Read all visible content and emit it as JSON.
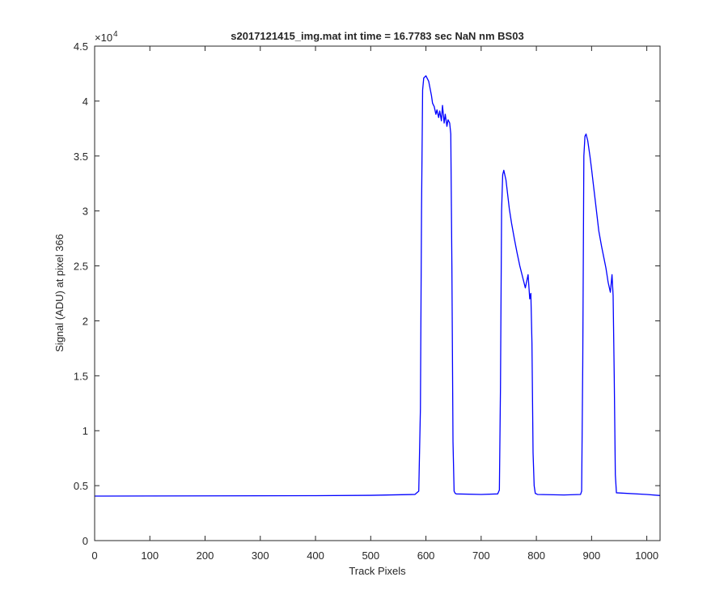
{
  "figure": {
    "background": "#ffffff"
  },
  "chart_data": {
    "type": "line",
    "title": "s2017121415_img.mat int time = 16.7783 sec  NaN nm BS03",
    "xlabel": "Track Pixels",
    "ylabel": "Signal (ADU) at pixel 366",
    "xlim": [
      0,
      1024
    ],
    "ylim": [
      0,
      45000
    ],
    "xticks": [
      0,
      100,
      200,
      300,
      400,
      500,
      600,
      700,
      800,
      900,
      1000
    ],
    "xtick_labels": [
      "0",
      "100",
      "200",
      "300",
      "400",
      "500",
      "600",
      "700",
      "800",
      "900",
      "1000"
    ],
    "yticks": [
      0,
      5000,
      10000,
      15000,
      20000,
      25000,
      30000,
      35000,
      40000,
      45000
    ],
    "ytick_labels": [
      "0",
      "0.5",
      "1",
      "1.5",
      "2",
      "2.5",
      "3",
      "3.5",
      "4",
      "4.5"
    ],
    "y_exponent_base": "×10",
    "y_exponent_power": "4",
    "grid": false,
    "line_color": "#0000ff",
    "series": [
      {
        "name": "",
        "x": [
          0,
          100,
          200,
          300,
          400,
          500,
          580,
          587,
          590,
          592,
          594,
          596,
          600,
          605,
          610,
          612,
          615,
          618,
          620,
          623,
          625,
          628,
          630,
          633,
          635,
          638,
          640,
          643,
          645,
          647,
          649,
          651,
          653,
          655,
          700,
          730,
          733,
          735,
          737,
          739,
          741,
          745,
          748,
          751,
          755,
          760,
          765,
          770,
          775,
          780,
          785,
          788,
          790,
          792,
          794,
          796,
          798,
          802,
          850,
          880,
          882,
          884,
          886,
          888,
          890,
          893,
          897,
          900,
          903,
          907,
          910,
          913,
          918,
          922,
          926,
          930,
          934,
          937,
          939,
          941,
          943,
          945,
          1000,
          1024
        ],
        "y": [
          4050,
          4060,
          4070,
          4080,
          4090,
          4120,
          4200,
          4500,
          12000,
          30000,
          41000,
          42100,
          42300,
          41800,
          40500,
          39800,
          39500,
          38800,
          39200,
          38500,
          39100,
          38200,
          39600,
          38000,
          38800,
          37700,
          38300,
          38000,
          37000,
          25000,
          9000,
          4500,
          4300,
          4250,
          4200,
          4250,
          4600,
          14000,
          30000,
          33300,
          33700,
          32800,
          31500,
          30200,
          28900,
          27500,
          26200,
          25000,
          24000,
          23000,
          24200,
          22000,
          22500,
          18000,
          8000,
          5000,
          4300,
          4200,
          4150,
          4200,
          4500,
          16000,
          35000,
          36800,
          37000,
          36400,
          35000,
          33800,
          32500,
          30800,
          29500,
          28200,
          26800,
          25800,
          24800,
          23500,
          22600,
          24200,
          22300,
          15000,
          6000,
          4350,
          4200,
          4100
        ]
      }
    ]
  }
}
